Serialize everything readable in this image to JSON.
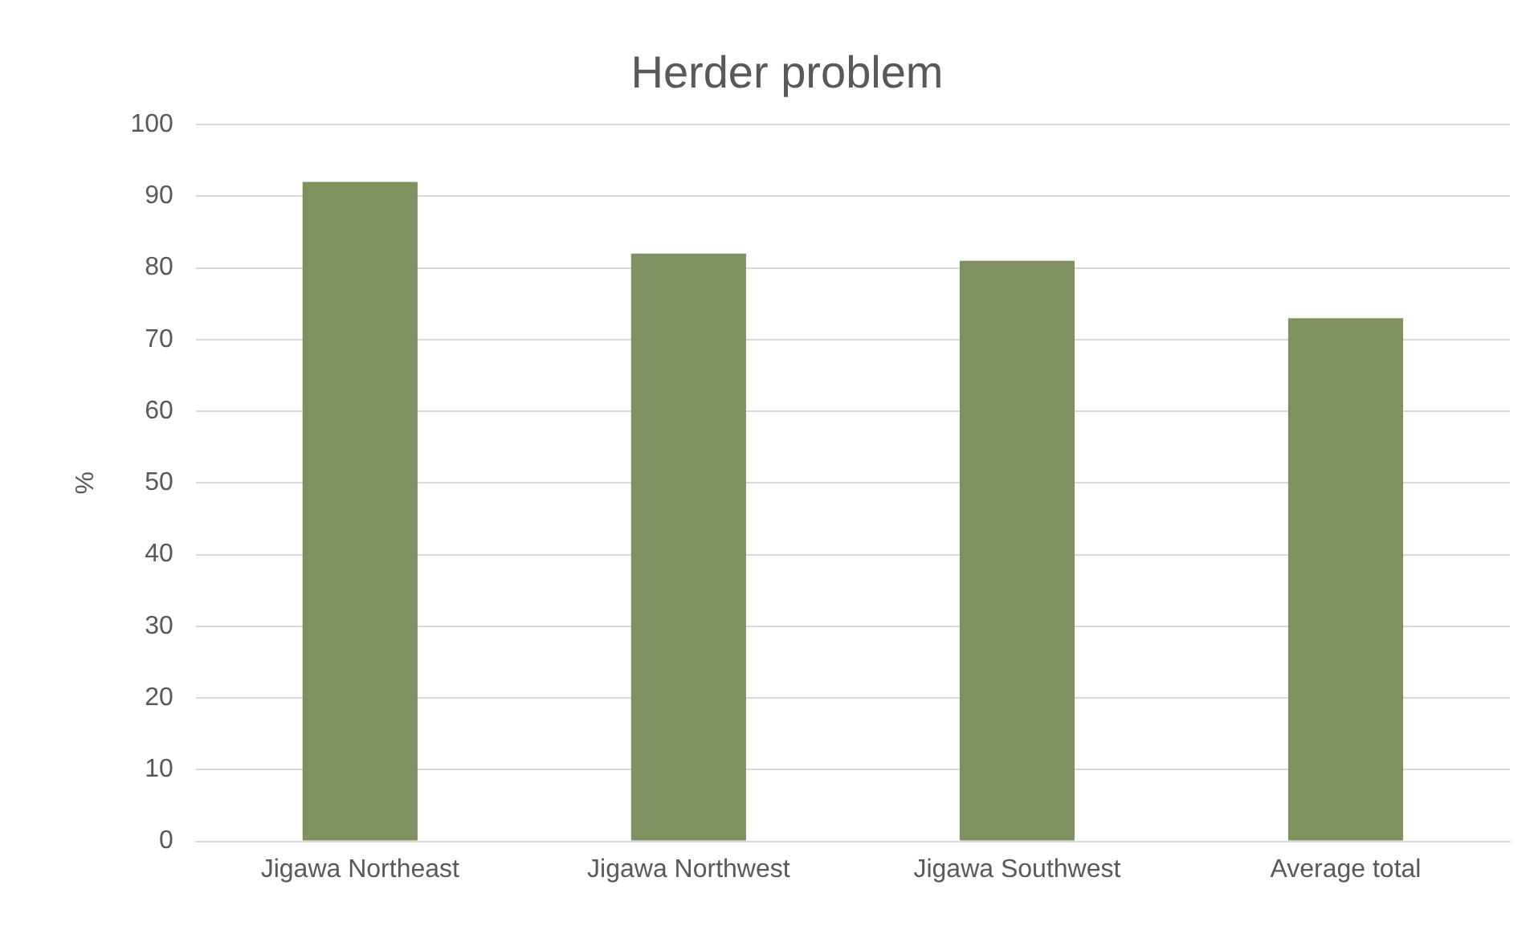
{
  "chart_data": {
    "type": "bar",
    "title": "Herder problem",
    "ylabel": "%",
    "categories": [
      "Jigawa Northeast",
      "Jigawa Northwest",
      "Jigawa Southwest",
      "Average total"
    ],
    "values": [
      92,
      82,
      81,
      73
    ],
    "color": "#7f9160",
    "ylim": [
      0,
      100
    ],
    "yticks": [
      0,
      10,
      20,
      30,
      40,
      50,
      60,
      70,
      80,
      90,
      100
    ],
    "grid": "y",
    "legend": false
  }
}
